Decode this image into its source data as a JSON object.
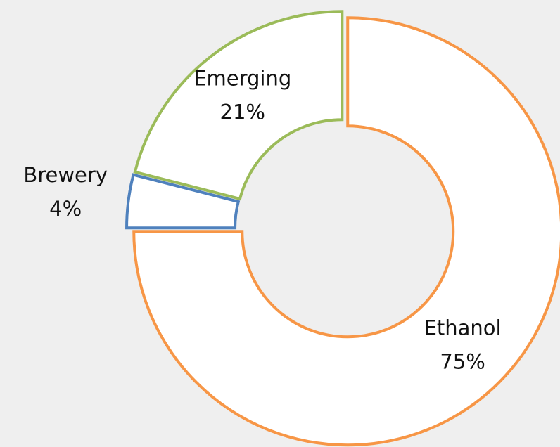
{
  "chart_data": {
    "type": "donut",
    "categories": [
      "Ethanol",
      "Brewery",
      "Emerging"
    ],
    "values": [
      75,
      4,
      21
    ],
    "value_labels": [
      "75%",
      "4%",
      "21%"
    ],
    "colors": [
      "#f79646",
      "#4f81bd",
      "#9bbb59"
    ]
  }
}
